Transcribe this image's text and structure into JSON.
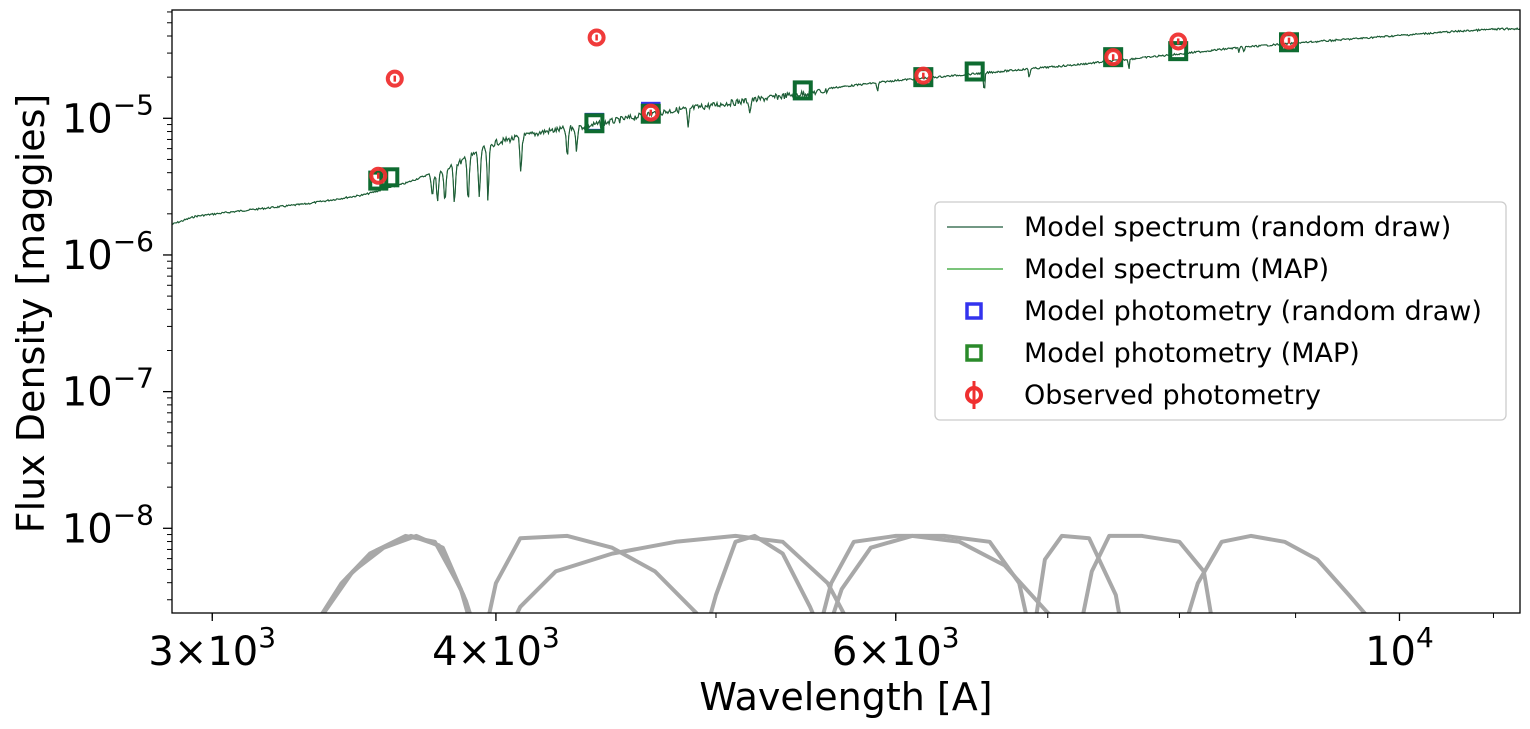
{
  "chart_data": {
    "type": "scatter",
    "title": "",
    "xlabel": "Wavelength [A]",
    "ylabel": "Flux Density [maggies]",
    "xscale": "log",
    "yscale": "log",
    "xlim": [
      2880,
      11300
    ],
    "ylim": [
      2.4e-09,
      6.2e-05
    ],
    "grid": false,
    "legend_placement": "center-right",
    "colors": {
      "spectrum_random": "#1f5a3a",
      "spectrum_map": "#2ca02c",
      "phot_random": "#3333ee",
      "phot_map": "#2a8a2a",
      "phot_map_edge": "#0e6b30",
      "observed": "#ef3030",
      "filters": "#a8a8a8"
    },
    "x_ticks": [
      {
        "value": 3000,
        "base": "3",
        "exp": "3"
      },
      {
        "value": 4000,
        "base": "4",
        "exp": "3"
      },
      {
        "value": 6000,
        "base": "6",
        "exp": "3"
      },
      {
        "value": 10000,
        "base": "",
        "exp": "4"
      }
    ],
    "y_ticks": [
      {
        "value": 1e-08,
        "exp": "−8"
      },
      {
        "value": 1e-07,
        "exp": "−7"
      },
      {
        "value": 1e-06,
        "exp": "−6"
      },
      {
        "value": 1e-05,
        "exp": "−5"
      }
    ],
    "legend": [
      {
        "label": "Model spectrum (random draw)",
        "kind": "line",
        "color_key": "spectrum_random"
      },
      {
        "label": "Model spectrum (MAP)",
        "kind": "line",
        "color_key": "spectrum_map"
      },
      {
        "label": "Model photometry (random draw)",
        "kind": "square",
        "color_key": "phot_random"
      },
      {
        "label": "Model photometry (MAP)",
        "kind": "square",
        "color_key": "phot_map"
      },
      {
        "label": "Observed photometry",
        "kind": "errorbar",
        "color_key": "observed"
      }
    ],
    "spectrum_continuum": [
      [
        2880,
        1.7e-06
      ],
      [
        2950,
        1.95e-06
      ],
      [
        3100,
        2.15e-06
      ],
      [
        3300,
        2.4e-06
      ],
      [
        3500,
        2.8e-06
      ],
      [
        3650,
        3.4e-06
      ],
      [
        3800,
        4.4e-06
      ],
      [
        4000,
        7e-06
      ],
      [
        4200,
        8.4e-06
      ],
      [
        4400,
        9.3e-06
      ],
      [
        4700,
        1.15e-05
      ],
      [
        5000,
        1.32e-05
      ],
      [
        5300,
        1.5e-05
      ],
      [
        5600,
        1.68e-05
      ],
      [
        6000,
        1.92e-05
      ],
      [
        6400,
        2.1e-05
      ],
      [
        6800,
        2.3e-05
      ],
      [
        7200,
        2.5e-05
      ],
      [
        7600,
        2.75e-05
      ],
      [
        8000,
        3e-05
      ],
      [
        8500,
        3.35e-05
      ],
      [
        9000,
        3.6e-05
      ],
      [
        9500,
        3.85e-05
      ],
      [
        10000,
        4.1e-05
      ],
      [
        10500,
        4.35e-05
      ],
      [
        11000,
        4.55e-05
      ],
      [
        11300,
        4.6e-05
      ]
    ],
    "spectrum_absorption": [
      {
        "x": 3750,
        "depth": 0.7
      },
      {
        "x": 3770,
        "depth": 0.65
      },
      {
        "x": 3798,
        "depth": 0.6
      },
      {
        "x": 3835,
        "depth": 0.55
      },
      {
        "x": 3889,
        "depth": 0.5
      },
      {
        "x": 3933,
        "depth": 0.45
      },
      {
        "x": 3968,
        "depth": 0.4
      },
      {
        "x": 4102,
        "depth": 0.55
      },
      {
        "x": 4300,
        "depth": 0.6
      },
      {
        "x": 4340,
        "depth": 0.7
      },
      {
        "x": 4861,
        "depth": 0.7
      },
      {
        "x": 5175,
        "depth": 0.8
      },
      {
        "x": 5890,
        "depth": 0.85
      },
      {
        "x": 6563,
        "depth": 0.7
      },
      {
        "x": 6870,
        "depth": 0.85
      },
      {
        "x": 7600,
        "depth": 0.85
      },
      {
        "x": 8498,
        "depth": 0.9
      },
      {
        "x": 8542,
        "depth": 0.9
      }
    ],
    "series": [
      {
        "name": "Model photometry (random draw)",
        "points": [
          {
            "x": 3550,
            "y": 3.5e-06
          },
          {
            "x": 4420,
            "y": 9.3e-06
          },
          {
            "x": 4680,
            "y": 1.12e-05
          },
          {
            "x": 5460,
            "y": 1.6e-05
          },
          {
            "x": 6170,
            "y": 2e-05
          },
          {
            "x": 6500,
            "y": 2.2e-05
          },
          {
            "x": 7480,
            "y": 2.8e-05
          },
          {
            "x": 7990,
            "y": 3.1e-05
          },
          {
            "x": 8940,
            "y": 3.6e-05
          }
        ]
      },
      {
        "name": "Model photometry (MAP)",
        "points": [
          {
            "x": 3550,
            "y": 3.5e-06
          },
          {
            "x": 3590,
            "y": 3.7e-06
          },
          {
            "x": 4420,
            "y": 9.2e-06
          },
          {
            "x": 4680,
            "y": 1.08e-05
          },
          {
            "x": 5460,
            "y": 1.6e-05
          },
          {
            "x": 6170,
            "y": 2e-05
          },
          {
            "x": 6500,
            "y": 2.2e-05
          },
          {
            "x": 7480,
            "y": 2.8e-05
          },
          {
            "x": 7990,
            "y": 3.1e-05
          },
          {
            "x": 8940,
            "y": 3.6e-05
          }
        ]
      },
      {
        "name": "Observed photometry",
        "points": [
          {
            "x": 3550,
            "y": 3.8e-06
          },
          {
            "x": 3610,
            "y": 1.95e-05
          },
          {
            "x": 4430,
            "y": 3.9e-05
          },
          {
            "x": 4680,
            "y": 1.1e-05
          },
          {
            "x": 6170,
            "y": 2.05e-05
          },
          {
            "x": 7480,
            "y": 2.8e-05
          },
          {
            "x": 7990,
            "y": 3.65e-05
          },
          {
            "x": 8940,
            "y": 3.7e-05
          }
        ]
      }
    ],
    "filter_curves": [
      {
        "points": [
          [
            3240,
            0.01
          ],
          [
            3330,
            0.25
          ],
          [
            3420,
            0.6
          ],
          [
            3520,
            0.85
          ],
          [
            3650,
            1.0
          ],
          [
            3760,
            0.95
          ],
          [
            3860,
            0.55
          ],
          [
            3920,
            0.1
          ],
          [
            3960,
            0.0
          ]
        ]
      },
      {
        "points": [
          [
            3255,
            0.01
          ],
          [
            3345,
            0.3
          ],
          [
            3440,
            0.65
          ],
          [
            3545,
            0.88
          ],
          [
            3670,
            1.0
          ],
          [
            3775,
            0.92
          ],
          [
            3870,
            0.5
          ],
          [
            3930,
            0.08
          ]
        ]
      },
      {
        "points": [
          [
            3270,
            0.01
          ],
          [
            3360,
            0.35
          ],
          [
            3460,
            0.7
          ],
          [
            3570,
            0.9
          ],
          [
            3690,
            1.0
          ],
          [
            3790,
            0.9
          ],
          [
            3880,
            0.45
          ],
          [
            3940,
            0.05
          ]
        ]
      },
      {
        "points": [
          [
            3940,
            0.02
          ],
          [
            4000,
            0.6
          ],
          [
            4100,
            0.98
          ],
          [
            4300,
            1.0
          ],
          [
            4500,
            0.9
          ],
          [
            4700,
            0.7
          ],
          [
            4900,
            0.35
          ],
          [
            5050,
            0.05
          ]
        ]
      },
      {
        "points": [
          [
            4010,
            0.02
          ],
          [
            4100,
            0.4
          ],
          [
            4250,
            0.7
          ],
          [
            4500,
            0.85
          ],
          [
            4800,
            0.95
          ],
          [
            5100,
            1.0
          ],
          [
            5350,
            0.95
          ],
          [
            5600,
            0.6
          ],
          [
            5800,
            0.05
          ]
        ]
      },
      {
        "points": [
          [
            4920,
            0.02
          ],
          [
            5000,
            0.5
          ],
          [
            5100,
            0.95
          ],
          [
            5200,
            1.0
          ],
          [
            5350,
            0.85
          ],
          [
            5500,
            0.4
          ],
          [
            5600,
            0.05
          ]
        ]
      },
      {
        "points": [
          [
            5520,
            0.02
          ],
          [
            5620,
            0.6
          ],
          [
            5750,
            0.95
          ],
          [
            6000,
            1.0
          ],
          [
            6300,
            1.0
          ],
          [
            6600,
            0.95
          ],
          [
            6800,
            0.6
          ],
          [
            6900,
            0.05
          ]
        ]
      },
      {
        "points": [
          [
            5560,
            0.02
          ],
          [
            5680,
            0.55
          ],
          [
            5850,
            0.9
          ],
          [
            6100,
            1.0
          ],
          [
            6400,
            0.95
          ],
          [
            6700,
            0.75
          ],
          [
            7000,
            0.35
          ],
          [
            7300,
            0.05
          ]
        ]
      },
      {
        "points": [
          [
            6880,
            0.02
          ],
          [
            6980,
            0.8
          ],
          [
            7100,
            1.0
          ],
          [
            7300,
            0.98
          ],
          [
            7500,
            0.5
          ],
          [
            7580,
            0.0
          ]
        ]
      },
      {
        "points": [
          [
            7200,
            0.02
          ],
          [
            7320,
            0.7
          ],
          [
            7450,
            1.0
          ],
          [
            7700,
            1.0
          ],
          [
            8000,
            0.95
          ],
          [
            8200,
            0.7
          ],
          [
            8300,
            0.1
          ]
        ]
      },
      {
        "points": [
          [
            7980,
            0.02
          ],
          [
            8150,
            0.6
          ],
          [
            8350,
            0.95
          ],
          [
            8600,
            1.0
          ],
          [
            8900,
            0.95
          ],
          [
            9200,
            0.8
          ],
          [
            9500,
            0.5
          ],
          [
            9800,
            0.2
          ],
          [
            10100,
            0.02
          ]
        ]
      }
    ]
  }
}
